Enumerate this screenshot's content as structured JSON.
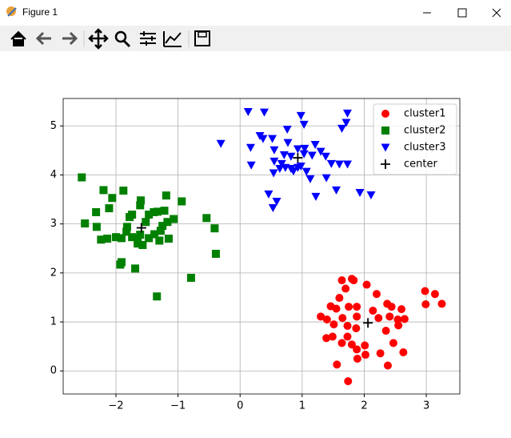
{
  "window": {
    "title": "Figure 1"
  },
  "chart_data": {
    "type": "scatter",
    "xlim": [
      -2.85,
      3.54
    ],
    "ylim": [
      -0.47,
      5.56
    ],
    "xticks": [
      {
        "value": -2,
        "label": "−2"
      },
      {
        "value": -1,
        "label": "−1"
      },
      0,
      1,
      2,
      3
    ],
    "yticks": [
      0,
      1,
      2,
      3,
      4,
      5
    ],
    "grid": true,
    "legend": "upper right",
    "series": [
      {
        "name": "cluster1",
        "color": "#ff0000",
        "marker": "circle",
        "x": [
          2.98,
          3.14,
          3.25,
          2.99,
          1.64,
          1.8,
          1.83,
          2.04,
          2.2,
          1.7,
          1.6,
          1.46,
          1.55,
          1.75,
          1.88,
          2.37,
          2.44,
          2.6,
          2.14,
          1.3,
          1.4,
          1.65,
          1.88,
          1.51,
          1.73,
          1.87,
          2.23,
          2.41,
          2.54,
          2.65,
          2.35,
          2.55,
          1.49,
          1.39,
          1.73,
          1.64,
          1.8,
          2.01,
          1.88,
          2.02,
          2.47,
          2.63,
          2.26,
          2.38,
          1.56,
          1.89,
          1.74
        ],
        "y": [
          1.63,
          1.57,
          1.37,
          1.36,
          1.85,
          1.88,
          1.85,
          1.76,
          1.57,
          1.68,
          1.49,
          1.32,
          1.27,
          1.31,
          1.31,
          1.37,
          1.31,
          1.26,
          1.23,
          1.11,
          1.05,
          1.08,
          1.11,
          0.95,
          0.92,
          0.87,
          1.08,
          1.11,
          1.05,
          1.06,
          0.82,
          0.93,
          0.7,
          0.67,
          0.7,
          0.57,
          0.54,
          0.52,
          0.44,
          0.33,
          0.57,
          0.38,
          0.36,
          0.11,
          0.13,
          0.25,
          -0.21
        ]
      },
      {
        "name": "cluster2",
        "color": "#008000",
        "marker": "square",
        "x": [
          -2.55,
          -2.5,
          -2.2,
          -2.32,
          -2.11,
          -2.06,
          -1.88,
          -2.31,
          -2.24,
          -2.14,
          -2.0,
          -1.91,
          -1.82,
          -1.78,
          -1.74,
          -1.83,
          -1.6,
          -1.61,
          -1.47,
          -1.52,
          -1.39,
          -1.33,
          -1.22,
          -1.19,
          -0.94,
          -1.07,
          -1.17,
          -1.25,
          -1.28,
          -1.38,
          -1.47,
          -1.61,
          -1.65,
          -1.57,
          -1.74,
          -1.3,
          -1.15,
          -1.65,
          -1.91,
          -1.93,
          -1.69,
          -0.54,
          -0.41,
          -0.39,
          -0.79,
          -1.34
        ],
        "y": [
          3.95,
          3.01,
          3.69,
          3.24,
          3.32,
          3.53,
          3.68,
          2.94,
          2.68,
          2.7,
          2.73,
          2.71,
          2.94,
          3.14,
          3.19,
          2.84,
          3.48,
          3.38,
          3.19,
          3.04,
          3.24,
          3.25,
          3.27,
          3.58,
          3.46,
          3.1,
          3.04,
          2.96,
          2.86,
          2.79,
          2.71,
          2.78,
          2.7,
          2.57,
          2.73,
          2.66,
          2.7,
          2.6,
          2.22,
          2.17,
          2.09,
          3.12,
          2.91,
          2.39,
          1.9,
          1.52
        ]
      },
      {
        "name": "cluster3",
        "color": "#0000ff",
        "marker": "triangle-down",
        "x": [
          0.13,
          0.39,
          0.98,
          1.73,
          1.71,
          1.03,
          1.64,
          0.76,
          0.32,
          0.37,
          0.52,
          0.77,
          -0.31,
          0.17,
          0.55,
          0.93,
          1.04,
          1.21,
          1.3,
          0.82,
          0.71,
          1.03,
          1.16,
          1.38,
          1.47,
          1.6,
          1.73,
          0.18,
          0.55,
          0.67,
          0.54,
          0.64,
          0.73,
          0.82,
          0.86,
          0.98,
          1.07,
          1.13,
          0.93,
          1.39,
          1.93,
          2.11,
          1.55,
          1.22,
          0.46,
          0.59,
          0.53
        ],
        "y": [
          5.29,
          5.28,
          5.21,
          5.26,
          5.07,
          5.03,
          4.95,
          4.93,
          4.8,
          4.74,
          4.74,
          4.66,
          4.64,
          4.56,
          4.51,
          4.53,
          4.54,
          4.62,
          4.48,
          4.38,
          4.41,
          4.43,
          4.4,
          4.38,
          4.23,
          4.22,
          4.22,
          4.2,
          4.28,
          4.23,
          4.04,
          4.13,
          4.15,
          4.13,
          4.08,
          4.18,
          4.07,
          3.92,
          4.15,
          3.94,
          3.64,
          3.59,
          3.69,
          3.56,
          3.61,
          3.46,
          3.33
        ]
      },
      {
        "name": "center",
        "color": "#000000",
        "marker": "plus",
        "x": [
          2.06,
          -1.59,
          0.93
        ],
        "y": [
          0.98,
          2.92,
          4.35
        ]
      }
    ]
  }
}
